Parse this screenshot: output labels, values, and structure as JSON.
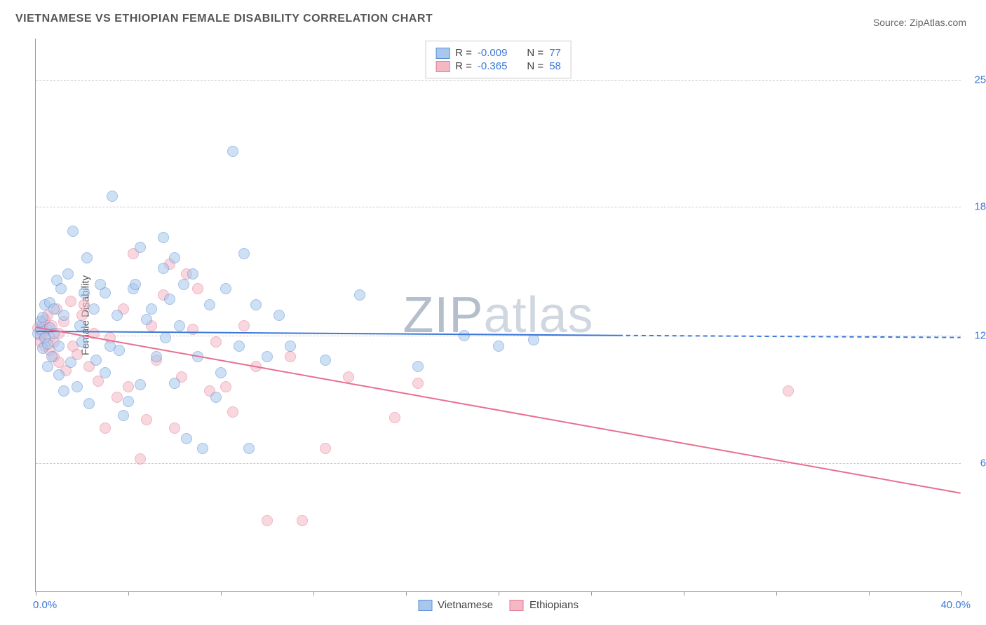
{
  "title": "VIETNAMESE VS ETHIOPIAN FEMALE DISABILITY CORRELATION CHART",
  "source": "Source: ZipAtlas.com",
  "ylabel": "Female Disability",
  "watermark_zip": "ZIP",
  "watermark_atlas": "atlas",
  "chart": {
    "type": "scatter",
    "background_color": "#ffffff",
    "grid_color": "#cccccc",
    "axis_color": "#999999",
    "xlim": [
      0,
      40
    ],
    "ylim": [
      0,
      27
    ],
    "y_gridlines": [
      6.3,
      12.5,
      18.8,
      25.0
    ],
    "y_labels": [
      "6.3%",
      "12.5%",
      "18.8%",
      "25.0%"
    ],
    "x_ticks": [
      0,
      4,
      8,
      12,
      16,
      20,
      24,
      28,
      32,
      36,
      40
    ],
    "x_min_label": "0.0%",
    "x_max_label": "40.0%",
    "tick_label_color": "#3b78d8",
    "marker_radius": 8,
    "marker_opacity": 0.55
  },
  "stats_legend": {
    "r_label": "R =",
    "n_label": "N =",
    "rows": [
      {
        "r": "-0.009",
        "n": "77",
        "swatch_fill": "#a7c7ec",
        "swatch_border": "#5b8dd6"
      },
      {
        "r": "-0.365",
        "n": "58",
        "swatch_fill": "#f4b8c5",
        "swatch_border": "#e57a97"
      }
    ],
    "value_color": "#3b78d8",
    "label_color": "#444444"
  },
  "bottom_legend": [
    {
      "label": "Vietnamese",
      "fill": "#a7c7ec",
      "border": "#5b8dd6"
    },
    {
      "label": "Ethiopians",
      "fill": "#f4b8c5",
      "border": "#e57a97"
    }
  ],
  "trend_lines": {
    "vietnamese": {
      "color": "#3b78d8",
      "stroke_width": 2,
      "solid": {
        "x1": 0,
        "y1": 12.7,
        "x2": 25.2,
        "y2": 12.5
      },
      "dashed": {
        "x1": 25.2,
        "y1": 12.5,
        "x2": 40,
        "y2": 12.4
      }
    },
    "ethiopian": {
      "color": "#e86f8f",
      "stroke_width": 2,
      "solid": {
        "x1": 0,
        "y1": 12.9,
        "x2": 40,
        "y2": 4.8
      }
    }
  },
  "series": {
    "vietnamese": {
      "fill": "#a7c7ec",
      "border": "#5b8dd6",
      "points": [
        [
          0.1,
          12.6
        ],
        [
          0.2,
          12.8
        ],
        [
          0.2,
          13.2
        ],
        [
          0.3,
          13.4
        ],
        [
          0.3,
          11.9
        ],
        [
          0.4,
          12.4
        ],
        [
          0.4,
          14.0
        ],
        [
          0.5,
          12.1
        ],
        [
          0.5,
          11.0
        ],
        [
          0.6,
          12.9
        ],
        [
          0.6,
          14.1
        ],
        [
          0.7,
          11.5
        ],
        [
          0.8,
          12.6
        ],
        [
          0.8,
          13.8
        ],
        [
          0.9,
          15.2
        ],
        [
          1.0,
          10.6
        ],
        [
          1.0,
          12.0
        ],
        [
          1.1,
          14.8
        ],
        [
          1.2,
          13.5
        ],
        [
          1.2,
          9.8
        ],
        [
          1.4,
          15.5
        ],
        [
          1.5,
          11.2
        ],
        [
          1.6,
          17.6
        ],
        [
          1.8,
          10.0
        ],
        [
          1.9,
          13.0
        ],
        [
          2.0,
          12.2
        ],
        [
          2.1,
          14.6
        ],
        [
          2.2,
          16.3
        ],
        [
          2.3,
          9.2
        ],
        [
          2.5,
          13.8
        ],
        [
          2.6,
          11.3
        ],
        [
          2.8,
          15.0
        ],
        [
          3.0,
          14.6
        ],
        [
          3.0,
          10.7
        ],
        [
          3.2,
          12.0
        ],
        [
          3.3,
          19.3
        ],
        [
          3.5,
          13.5
        ],
        [
          3.6,
          11.8
        ],
        [
          3.8,
          8.6
        ],
        [
          4.0,
          9.3
        ],
        [
          4.2,
          14.8
        ],
        [
          4.3,
          15.0
        ],
        [
          4.5,
          16.8
        ],
        [
          4.5,
          10.1
        ],
        [
          4.8,
          13.3
        ],
        [
          5.0,
          13.8
        ],
        [
          5.2,
          11.5
        ],
        [
          5.5,
          17.3
        ],
        [
          5.5,
          15.8
        ],
        [
          5.6,
          12.4
        ],
        [
          5.8,
          14.3
        ],
        [
          6.0,
          16.3
        ],
        [
          6.0,
          10.2
        ],
        [
          6.2,
          13.0
        ],
        [
          6.4,
          15.0
        ],
        [
          6.5,
          7.5
        ],
        [
          6.8,
          15.5
        ],
        [
          7.0,
          11.5
        ],
        [
          7.2,
          7.0
        ],
        [
          7.5,
          14.0
        ],
        [
          7.8,
          9.5
        ],
        [
          8.0,
          10.7
        ],
        [
          8.2,
          14.8
        ],
        [
          8.5,
          21.5
        ],
        [
          8.8,
          12.0
        ],
        [
          9.0,
          16.5
        ],
        [
          9.2,
          7.0
        ],
        [
          9.5,
          14.0
        ],
        [
          10.0,
          11.5
        ],
        [
          10.5,
          13.5
        ],
        [
          11.0,
          12.0
        ],
        [
          12.5,
          11.3
        ],
        [
          14.0,
          14.5
        ],
        [
          16.5,
          11.0
        ],
        [
          18.5,
          12.5
        ],
        [
          20.0,
          12.0
        ],
        [
          21.5,
          12.3
        ]
      ]
    },
    "ethiopian": {
      "fill": "#f4b8c5",
      "border": "#e57a97",
      "points": [
        [
          0.1,
          12.9
        ],
        [
          0.2,
          12.5
        ],
        [
          0.2,
          12.2
        ],
        [
          0.3,
          13.1
        ],
        [
          0.3,
          12.6
        ],
        [
          0.4,
          13.3
        ],
        [
          0.4,
          12.0
        ],
        [
          0.5,
          12.8
        ],
        [
          0.5,
          13.5
        ],
        [
          0.6,
          12.4
        ],
        [
          0.6,
          11.8
        ],
        [
          0.7,
          13.0
        ],
        [
          0.8,
          12.2
        ],
        [
          0.8,
          11.5
        ],
        [
          0.9,
          13.8
        ],
        [
          1.0,
          12.6
        ],
        [
          1.0,
          11.2
        ],
        [
          1.2,
          13.2
        ],
        [
          1.3,
          10.8
        ],
        [
          1.5,
          14.2
        ],
        [
          1.6,
          12.0
        ],
        [
          1.8,
          11.6
        ],
        [
          2.0,
          13.5
        ],
        [
          2.1,
          14.0
        ],
        [
          2.3,
          11.0
        ],
        [
          2.5,
          12.6
        ],
        [
          2.7,
          10.3
        ],
        [
          3.0,
          8.0
        ],
        [
          3.2,
          12.4
        ],
        [
          3.5,
          9.5
        ],
        [
          3.8,
          13.8
        ],
        [
          4.0,
          10.0
        ],
        [
          4.2,
          16.5
        ],
        [
          4.5,
          6.5
        ],
        [
          4.8,
          8.4
        ],
        [
          5.0,
          13.0
        ],
        [
          5.2,
          11.3
        ],
        [
          5.5,
          14.5
        ],
        [
          5.8,
          16.0
        ],
        [
          6.0,
          8.0
        ],
        [
          6.3,
          10.5
        ],
        [
          6.5,
          15.5
        ],
        [
          6.8,
          12.8
        ],
        [
          7.0,
          14.8
        ],
        [
          7.5,
          9.8
        ],
        [
          7.8,
          12.2
        ],
        [
          8.2,
          10.0
        ],
        [
          8.5,
          8.8
        ],
        [
          9.0,
          13.0
        ],
        [
          9.5,
          11.0
        ],
        [
          10.0,
          3.5
        ],
        [
          11.0,
          11.5
        ],
        [
          11.5,
          3.5
        ],
        [
          12.5,
          7.0
        ],
        [
          13.5,
          10.5
        ],
        [
          15.5,
          8.5
        ],
        [
          16.5,
          10.2
        ],
        [
          32.5,
          9.8
        ]
      ]
    }
  }
}
